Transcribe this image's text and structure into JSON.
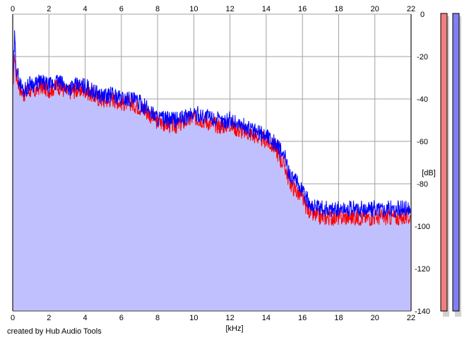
{
  "chart_data": {
    "type": "area",
    "title": "",
    "xlabel": "[kHz]",
    "ylabel": "[dB]",
    "xlim": [
      0,
      22
    ],
    "ylim": [
      -140,
      0
    ],
    "x_ticks": [
      0,
      2,
      4,
      6,
      8,
      10,
      12,
      14,
      16,
      18,
      20,
      22
    ],
    "y_ticks": [
      0,
      -20,
      -40,
      -60,
      -80,
      -100,
      -120,
      -140
    ],
    "grid": true,
    "series": [
      {
        "color": "#ff0000",
        "x": [
          0.0,
          0.1,
          0.2,
          0.4,
          0.6,
          0.8,
          1.0,
          1.2,
          1.5,
          2.0,
          2.5,
          3.0,
          3.5,
          4.0,
          4.5,
          5.0,
          5.5,
          6.0,
          6.5,
          7.0,
          7.5,
          8.0,
          8.5,
          9.0,
          9.5,
          10.0,
          10.5,
          11.0,
          11.5,
          12.0,
          12.5,
          13.0,
          13.5,
          14.0,
          14.5,
          14.8,
          15.0,
          15.2,
          15.4,
          15.6,
          15.8,
          16.0,
          16.2,
          16.4,
          16.6,
          17.0,
          17.5,
          18.0,
          18.5,
          19.0,
          19.5,
          20.0,
          20.5,
          21.0,
          21.5,
          22.0
        ],
        "values": [
          -36,
          -18,
          -28,
          -34,
          -37,
          -36,
          -35,
          -36,
          -33,
          -35,
          -33,
          -36,
          -35,
          -35,
          -38,
          -40,
          -39,
          -41,
          -41,
          -43,
          -46,
          -50,
          -51,
          -52,
          -50,
          -48,
          -49,
          -51,
          -52,
          -51,
          -54,
          -55,
          -57,
          -59,
          -62,
          -68,
          -70,
          -76,
          -80,
          -82,
          -84,
          -86,
          -90,
          -92,
          -94,
          -95,
          -95,
          -95,
          -95,
          -95,
          -95,
          -95,
          -95,
          -95,
          -95,
          -95
        ]
      },
      {
        "color": "#0000ff",
        "x": [
          0.0,
          0.1,
          0.2,
          0.4,
          0.6,
          0.8,
          1.0,
          1.2,
          1.5,
          2.0,
          2.5,
          3.0,
          3.5,
          4.0,
          4.5,
          5.0,
          5.5,
          6.0,
          6.5,
          7.0,
          7.5,
          8.0,
          8.5,
          9.0,
          9.5,
          10.0,
          10.5,
          11.0,
          11.5,
          12.0,
          12.5,
          13.0,
          13.5,
          14.0,
          14.5,
          14.8,
          15.0,
          15.2,
          15.4,
          15.6,
          15.8,
          16.0,
          16.2,
          16.4,
          16.6,
          17.0,
          17.5,
          18.0,
          18.5,
          19.0,
          19.5,
          20.0,
          20.5,
          21.0,
          21.5,
          22.0
        ],
        "values": [
          -35,
          -10,
          -25,
          -32,
          -35,
          -34,
          -31,
          -33,
          -31,
          -33,
          -31,
          -34,
          -33,
          -33,
          -36,
          -38,
          -37,
          -39,
          -39,
          -41,
          -44,
          -48,
          -49,
          -49,
          -48,
          -46,
          -47,
          -48,
          -50,
          -49,
          -51,
          -53,
          -55,
          -56,
          -60,
          -64,
          -66,
          -72,
          -76,
          -78,
          -80,
          -82,
          -86,
          -88,
          -90,
          -91,
          -91,
          -91,
          -91,
          -91,
          -91,
          -91,
          -91,
          -91,
          -91,
          -91
        ]
      }
    ],
    "level_bars": [
      {
        "color": "#f08080"
      },
      {
        "color": "#8080f0"
      }
    ]
  },
  "footer": "created by Hub Audio Tools",
  "colors": {
    "fill": "#c0c0ff",
    "grid": "#a0a0a0",
    "axis": "#404040",
    "plot_bg": "#ffffff"
  }
}
